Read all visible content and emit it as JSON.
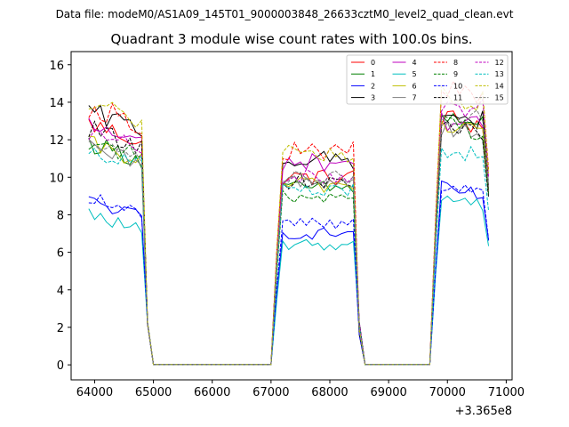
{
  "chart_data": {
    "type": "line",
    "suptitle": "Data file: modeM0/AS1A09_145T01_9000003848_26633cztM0_level2_quad_clean.evt",
    "title": "Quadrant 3 module wise count rates with 100.0s bins.",
    "xlabel": "",
    "ylabel": "",
    "x_offset_label": "+3.365e8",
    "xlim": [
      63600,
      71100
    ],
    "ylim": [
      -0.8,
      16.7
    ],
    "x_ticks": [
      64000,
      65000,
      66000,
      67000,
      68000,
      69000,
      70000,
      71000
    ],
    "x_tick_labels": [
      "64000",
      "65000",
      "66000",
      "67000",
      "68000",
      "69000",
      "70000",
      "71000"
    ],
    "y_ticks": [
      0,
      2,
      4,
      6,
      8,
      10,
      12,
      14,
      16
    ],
    "y_tick_labels": [
      "0",
      "2",
      "4",
      "6",
      "8",
      "10",
      "12",
      "14",
      "16"
    ],
    "x_start": 63900,
    "bin_width": 100,
    "segments": [
      {
        "x_first": 63900,
        "x_last": 64800
      },
      {
        "x_first": 67100,
        "x_last": 68400
      },
      {
        "x_first": 69800,
        "x_last": 70700
      }
    ],
    "gap_value": 0.02,
    "legend_position": "top-right",
    "series": [
      {
        "name": "0",
        "color": "#ff0000",
        "dash": "solid",
        "levels": [
          12.3,
          10.0,
          13.0
        ]
      },
      {
        "name": "1",
        "color": "#008000",
        "dash": "solid",
        "levels": [
          11.3,
          9.4,
          13.0
        ]
      },
      {
        "name": "2",
        "color": "#0000ff",
        "dash": "solid",
        "levels": [
          8.2,
          7.0,
          9.2
        ]
      },
      {
        "name": "3",
        "color": "#000000",
        "dash": "solid",
        "levels": [
          12.9,
          10.9,
          13.2
        ]
      },
      {
        "name": "4",
        "color": "#bf00bf",
        "dash": "solid",
        "levels": [
          12.2,
          10.8,
          12.9
        ]
      },
      {
        "name": "5",
        "color": "#00bfbf",
        "dash": "solid",
        "levels": [
          7.5,
          6.4,
          8.8
        ]
      },
      {
        "name": "6",
        "color": "#bfbf00",
        "dash": "solid",
        "levels": [
          11.2,
          9.6,
          12.7
        ]
      },
      {
        "name": "7",
        "color": "#808080",
        "dash": "solid",
        "levels": [
          11.0,
          9.8,
          12.6
        ]
      },
      {
        "name": "8",
        "color": "#ff0000",
        "dash": "dashed",
        "levels": [
          13.2,
          11.4,
          14.5
        ]
      },
      {
        "name": "9",
        "color": "#008000",
        "dash": "dashed",
        "levels": [
          11.4,
          9.0,
          12.7
        ]
      },
      {
        "name": "10",
        "color": "#0000ff",
        "dash": "dashed",
        "levels": [
          8.4,
          7.6,
          9.3
        ]
      },
      {
        "name": "11",
        "color": "#000000",
        "dash": "dashed",
        "levels": [
          12.0,
          9.8,
          12.4
        ]
      },
      {
        "name": "12",
        "color": "#bf00bf",
        "dash": "dashed",
        "levels": [
          11.8,
          10.0,
          13.9
        ]
      },
      {
        "name": "13",
        "color": "#00bfbf",
        "dash": "dashed",
        "levels": [
          11.0,
          9.3,
          11.4
        ]
      },
      {
        "name": "14",
        "color": "#bfbf00",
        "dash": "dashed",
        "levels": [
          13.4,
          11.2,
          14.2
        ]
      },
      {
        "name": "15",
        "color": "#808080",
        "dash": "dashed",
        "levels": [
          11.6,
          9.9,
          13.2
        ]
      }
    ]
  }
}
